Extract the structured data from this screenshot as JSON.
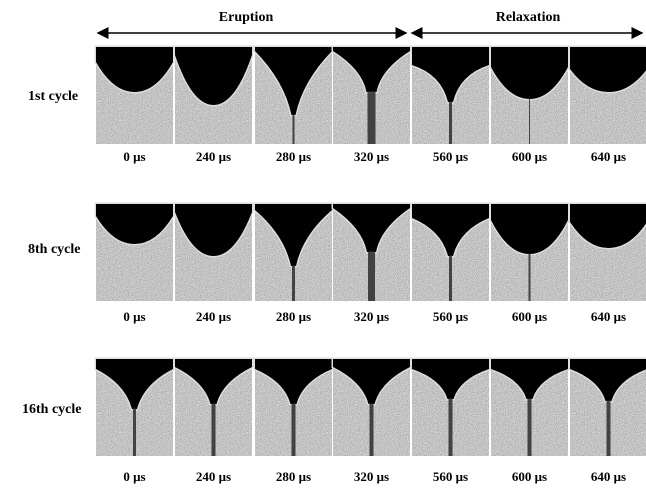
{
  "header": {
    "phases": [
      {
        "label": "Eruption"
      },
      {
        "label": "Relaxation"
      }
    ]
  },
  "rows": [
    {
      "label": "1st cycle",
      "times": [
        "0 μs",
        "240 μs",
        "280 μs",
        "320 μs",
        "560 μs",
        "600 μs",
        "640 μs"
      ]
    },
    {
      "label": "8th cycle",
      "times": [
        "0 μs",
        "240 μs",
        "280 μs",
        "320 μs",
        "560 μs",
        "600 μs",
        "640 μs"
      ]
    },
    {
      "label": "16th cycle",
      "times": [
        "0 μs",
        "240 μs",
        "280 μs",
        "320 μs",
        "560 μs",
        "600 μs",
        "640 μs"
      ]
    }
  ]
}
